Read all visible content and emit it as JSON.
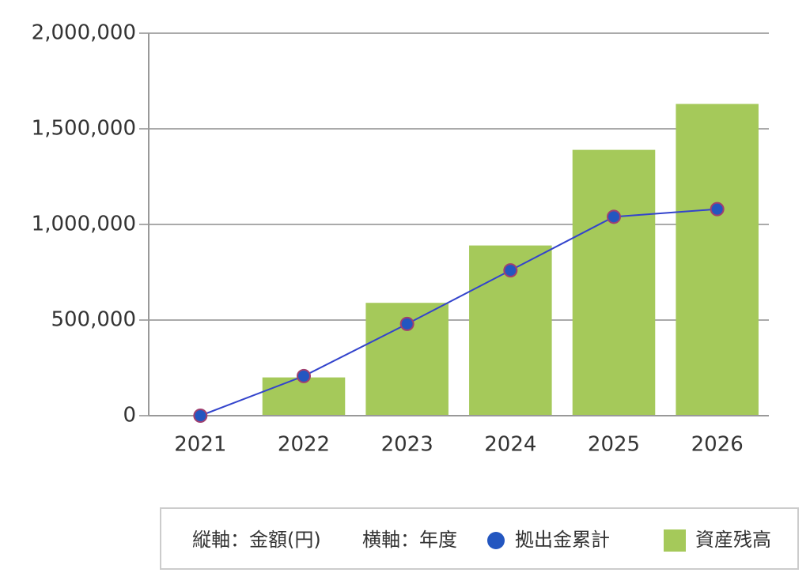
{
  "chart_data": {
    "type": "bar",
    "ylabel": "縦軸：金額(円)",
    "xlabel": "横軸：年度",
    "categories": [
      "2021",
      "2022",
      "2023",
      "2024",
      "2025",
      "2026"
    ],
    "series": [
      {
        "name": "拠出金累計",
        "type": "line",
        "color": "#2356c0",
        "values": [
          0,
          207000,
          480000,
          760000,
          1040000,
          1080000
        ]
      },
      {
        "name": "資産残高",
        "type": "bar",
        "color": "#a5c95a",
        "values": [
          0,
          200000,
          590000,
          890000,
          1390000,
          1630000
        ]
      }
    ],
    "ylim": [
      0,
      2000000
    ],
    "yticks": [
      0,
      {
        "value": 500000,
        "label": "500,000"
      },
      {
        "value": 1000000,
        "label": "1,000,000"
      },
      {
        "value": 1500000,
        "label": "1,500,000"
      },
      {
        "value": 2000000,
        "label": "2,000,000"
      }
    ],
    "grid": true,
    "legend": "bottom"
  }
}
